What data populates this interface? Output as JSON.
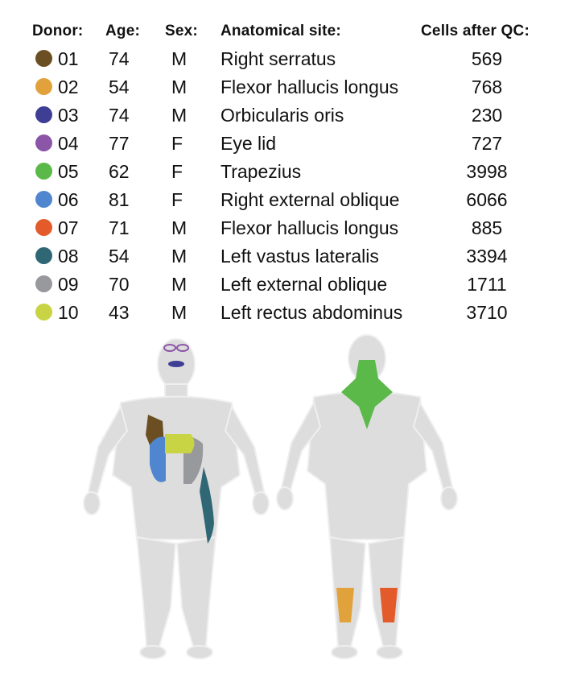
{
  "headers": {
    "donor": "Donor:",
    "age": "Age:",
    "sex": "Sex:",
    "site": "Anatomical site:",
    "cells": "Cells after QC:"
  },
  "rows": [
    {
      "donor": "01",
      "age": "74",
      "sex": "M",
      "site": "Right serratus",
      "cells": "569",
      "color": "#6b4f22"
    },
    {
      "donor": "02",
      "age": "54",
      "sex": "M",
      "site": "Flexor hallucis longus",
      "cells": "768",
      "color": "#e2a23b"
    },
    {
      "donor": "03",
      "age": "74",
      "sex": "M",
      "site": "Orbicularis oris",
      "cells": "230",
      "color": "#3e3f94"
    },
    {
      "donor": "04",
      "age": "77",
      "sex": "F",
      "site": "Eye lid",
      "cells": "727",
      "color": "#8b55a8"
    },
    {
      "donor": "05",
      "age": "62",
      "sex": "F",
      "site": "Trapezius",
      "cells": "3998",
      "color": "#5ab948"
    },
    {
      "donor": "06",
      "age": "81",
      "sex": "F",
      "site": "Right external oblique",
      "cells": "6066",
      "color": "#4f86cf"
    },
    {
      "donor": "07",
      "age": "71",
      "sex": "M",
      "site": "Flexor hallucis longus",
      "cells": "885",
      "color": "#e35b2a"
    },
    {
      "donor": "08",
      "age": "54",
      "sex": "M",
      "site": "Left vastus lateralis",
      "cells": "3394",
      "color": "#2f6775"
    },
    {
      "donor": "09",
      "age": "70",
      "sex": "M",
      "site": "Left external oblique",
      "cells": "1711",
      "color": "#98999c"
    },
    {
      "donor": "10",
      "age": "43",
      "sex": "M",
      "site": "Left rectus abdominus",
      "cells": "3710",
      "color": "#c8d443"
    }
  ]
}
